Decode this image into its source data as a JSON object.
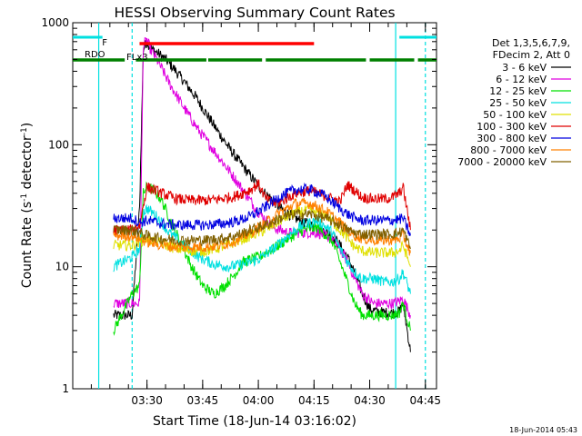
{
  "chart_data": {
    "type": "line",
    "title": "HESSI Observing Summary Count Rates",
    "xlabel": "Start Time (18-Jun-14 03:16:02)",
    "ylabel_parts": [
      "Count Rate (s",
      "-1",
      " detector",
      "-1",
      ")"
    ],
    "yscale": "log",
    "ylim": [
      1,
      1000
    ],
    "xlim_minutes": [
      -6,
      92
    ],
    "y_ticks": [
      {
        "value": 1,
        "label": "1"
      },
      {
        "value": 10,
        "label": "10"
      },
      {
        "value": 100,
        "label": "100"
      },
      {
        "value": 1000,
        "label": "1000"
      }
    ],
    "x_ticks": [
      {
        "value": 14,
        "label": "03:30"
      },
      {
        "value": 29,
        "label": "03:45"
      },
      {
        "value": 44,
        "label": "04:00"
      },
      {
        "value": 59,
        "label": "04:15"
      },
      {
        "value": 74,
        "label": "04:30"
      },
      {
        "value": 89,
        "label": "04:45"
      }
    ],
    "x_minor_step": 5,
    "legend": {
      "placement": "right-outside",
      "header": [
        "Det 1,3,5,6,7,9,",
        "FDecim 2, Att 0"
      ]
    },
    "series": [
      {
        "name": "3 - 6 keV",
        "color": "#000000",
        "x": [
          5,
          10,
          12,
          13,
          14,
          15,
          17,
          19,
          21,
          24,
          27,
          30,
          33,
          36,
          39,
          42,
          45,
          48,
          50,
          53,
          55,
          58,
          61,
          64,
          66,
          68,
          70,
          72,
          74,
          76,
          78,
          80,
          82,
          83,
          85
        ],
        "y": [
          4,
          4,
          30,
          600,
          700,
          620,
          560,
          500,
          430,
          330,
          250,
          180,
          130,
          95,
          72,
          55,
          42,
          35,
          30,
          26,
          24,
          22,
          20,
          18,
          15,
          12,
          9,
          6,
          4.5,
          4.3,
          4.2,
          4.2,
          4.3,
          5,
          2
        ]
      },
      {
        "name": "6 - 12 keV",
        "color": "#e000e0",
        "x": [
          5,
          10,
          12,
          13,
          14,
          15,
          17,
          20,
          24,
          28,
          32,
          36,
          40,
          44,
          48,
          52,
          56,
          60,
          64,
          66,
          68,
          70,
          72,
          75,
          78,
          80,
          82,
          83,
          85
        ],
        "y": [
          5,
          5,
          5,
          650,
          720,
          600,
          480,
          320,
          200,
          130,
          90,
          62,
          42,
          28,
          21,
          19,
          19,
          19,
          17,
          14,
          11,
          8,
          6,
          5,
          5,
          5,
          5.2,
          5.5,
          4
        ]
      },
      {
        "name": "12 - 25 keV",
        "color": "#00e000",
        "x": [
          5,
          10,
          12,
          13,
          14,
          16,
          18,
          20,
          23,
          26,
          29,
          32,
          35,
          38,
          40,
          44,
          48,
          52,
          56,
          60,
          64,
          66,
          68,
          70,
          72,
          75,
          78,
          80,
          82,
          83,
          85
        ],
        "y": [
          3,
          6,
          7,
          40,
          45,
          42,
          35,
          25,
          16,
          10,
          7,
          6,
          7,
          9,
          11,
          12,
          14,
          17,
          20,
          21,
          16,
          11,
          7.5,
          5,
          4,
          4,
          4,
          4,
          4.2,
          5,
          3
        ]
      },
      {
        "name": "25 - 50 keV",
        "color": "#00e0e0",
        "x": [
          5,
          10,
          12,
          13,
          14,
          16,
          18,
          20,
          24,
          28,
          32,
          36,
          40,
          44,
          48,
          52,
          56,
          60,
          64,
          66,
          68,
          70,
          72,
          75,
          78,
          80,
          82,
          83,
          85
        ],
        "y": [
          10,
          12,
          14,
          28,
          30,
          27,
          23,
          19,
          15,
          12,
          10.5,
          10,
          10.5,
          11.5,
          14,
          18,
          22,
          24,
          19,
          14,
          11,
          9,
          8,
          8,
          7.5,
          7.5,
          8,
          9,
          6
        ]
      },
      {
        "name": "50 - 100 keV",
        "color": "#e0e000",
        "x": [
          5,
          10,
          12,
          14,
          18,
          22,
          26,
          30,
          34,
          38,
          42,
          46,
          50,
          54,
          58,
          62,
          66,
          68,
          70,
          72,
          75,
          78,
          80,
          82,
          83,
          85
        ],
        "y": [
          15,
          15,
          16,
          17,
          15.5,
          14,
          13.5,
          13.5,
          14.5,
          16,
          18,
          20,
          24,
          28,
          29,
          27,
          20,
          17,
          14.5,
          13.5,
          13,
          13,
          13,
          13.5,
          15,
          10
        ]
      },
      {
        "name": "100 - 300 keV",
        "color": "#e00000",
        "x": [
          5,
          10,
          12,
          14,
          18,
          22,
          26,
          30,
          34,
          38,
          42,
          44,
          46,
          48,
          50,
          54,
          58,
          62,
          66,
          68,
          70,
          72,
          75,
          78,
          80,
          82,
          83,
          85
        ],
        "y": [
          20,
          20,
          22,
          45,
          40,
          36,
          35,
          35,
          36,
          38,
          43,
          48,
          36,
          33,
          34,
          40,
          42,
          38,
          34,
          47,
          42,
          37,
          36,
          36,
          37,
          40,
          45,
          20
        ]
      },
      {
        "name": "300 - 800 keV",
        "color": "#0000e0",
        "x": [
          5,
          10,
          12,
          14,
          18,
          22,
          26,
          30,
          34,
          38,
          42,
          46,
          50,
          54,
          58,
          62,
          66,
          68,
          70,
          72,
          75,
          78,
          80,
          82,
          83,
          85
        ],
        "y": [
          25,
          25,
          23,
          24,
          22.5,
          22,
          22,
          22,
          22.5,
          23.5,
          26,
          31,
          38,
          43,
          43,
          38,
          30,
          27,
          25,
          24,
          24,
          24,
          24,
          24.5,
          25,
          18
        ]
      },
      {
        "name": "800 - 7000 keV",
        "color": "#ff8000",
        "x": [
          5,
          10,
          12,
          14,
          18,
          22,
          26,
          30,
          34,
          38,
          42,
          46,
          50,
          54,
          58,
          62,
          66,
          68,
          70,
          72,
          75,
          78,
          80,
          82,
          83,
          85
        ],
        "y": [
          18,
          18,
          17,
          16,
          15,
          14.5,
          14.5,
          14.5,
          15,
          16.5,
          19,
          23,
          28,
          33,
          33,
          29,
          23,
          20,
          18,
          17,
          16.5,
          16.5,
          16.5,
          17,
          18,
          13
        ]
      },
      {
        "name": "7000 - 20000 keV",
        "color": "#806000",
        "x": [
          5,
          10,
          12,
          14,
          18,
          22,
          26,
          30,
          34,
          38,
          42,
          46,
          50,
          54,
          58,
          62,
          66,
          68,
          70,
          72,
          75,
          78,
          80,
          82,
          83,
          85
        ],
        "y": [
          20,
          20,
          19,
          18,
          17,
          16.5,
          16.5,
          16.5,
          17,
          18,
          20,
          22,
          25,
          27,
          27,
          25,
          22,
          20,
          19,
          18.5,
          18.5,
          18.5,
          18.5,
          19,
          20,
          14
        ]
      }
    ],
    "flags": [
      {
        "label": "F",
        "color": "#ff0000",
        "segments": [
          [
            12,
            59
          ]
        ]
      },
      {
        "label": "RDO",
        "color": "#008000",
        "segments": [
          [
            -6,
            8
          ],
          [
            11,
            30
          ],
          [
            30.5,
            45
          ],
          [
            46,
            73
          ],
          [
            74,
            86
          ],
          [
            87,
            92
          ]
        ]
      }
    ],
    "sun_flag": {
      "color": "#00e0e0",
      "segments": [
        [
          -6,
          2
        ],
        [
          82,
          92
        ]
      ]
    },
    "saa_markers": {
      "color": "#00e0e0",
      "solid": [
        1,
        81
      ],
      "dashed": [
        10,
        89
      ]
    },
    "markers_text": "FLx3",
    "footer_date": "18-Jun-2014 05:43"
  }
}
